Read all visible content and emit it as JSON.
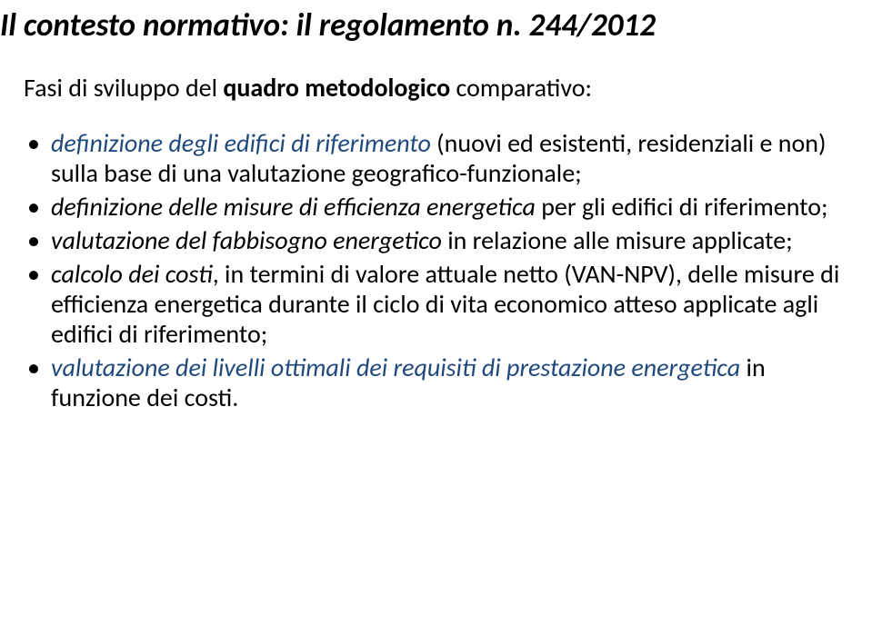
{
  "title": "Il contesto normativo: il regolamento n. 244/2012",
  "subtitle_prefix": "Fasi di sviluppo del ",
  "subtitle_bold": "quadro metodologico",
  "subtitle_suffix": " comparativo:",
  "bullets": [
    {
      "parts": [
        {
          "text": "definizione degli edifici di riferimento ",
          "italic": true,
          "blue": true
        },
        {
          "text": "(nuovi ed esistenti, residenziali e non) sulla base di una valutazione geografico-funzionale;",
          "italic": false,
          "blue": false
        }
      ]
    },
    {
      "parts": [
        {
          "text": "definizione delle misure di efficienza energetica ",
          "italic": true,
          "blue": false
        },
        {
          "text": "per gli edifici di riferimento;",
          "italic": false,
          "blue": false
        }
      ]
    },
    {
      "parts": [
        {
          "text": "valutazione del fabbisogno energetico ",
          "italic": true,
          "blue": false
        },
        {
          "text": "in relazione alle misure applicate;",
          "italic": false,
          "blue": false
        }
      ]
    },
    {
      "parts": [
        {
          "text": "calcolo dei costi",
          "italic": true,
          "blue": false
        },
        {
          "text": ", in termini di valore attuale netto (VAN-NPV), delle misure di efficienza energetica durante il ciclo di vita economico atteso applicate agli edifici di riferimento;",
          "italic": false,
          "blue": false
        }
      ]
    },
    {
      "parts": [
        {
          "text": "valutazione dei livelli ottimali dei requisiti di prestazione energetica ",
          "italic": true,
          "blue": true
        },
        {
          "text": "in funzione dei costi.",
          "italic": false,
          "blue": false
        }
      ]
    }
  ]
}
